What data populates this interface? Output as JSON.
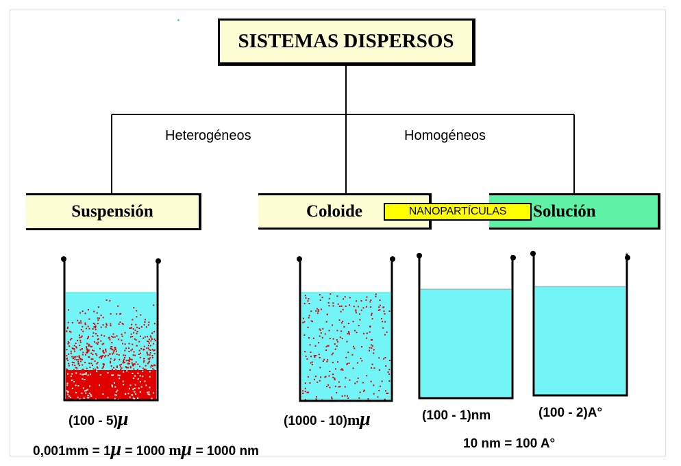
{
  "title": "SISTEMAS DISPERSOS",
  "branches": {
    "heterogeneous": "Heterogéneos",
    "homogeneous": "Homogéneos"
  },
  "systems": {
    "suspension": "Suspensión",
    "coloide": "Coloide",
    "solucion": "Solución"
  },
  "nano_badge": "NANOPARTÍCULAS",
  "sizes": {
    "suspension": {
      "range": "(100 - 5)",
      "unit_symbol": "μ"
    },
    "coloide": {
      "range": "(1000 - 10)",
      "unit_prefix": "m",
      "unit_symbol": "μ"
    },
    "solucion_nm": "(100 - 1)nm",
    "solucion_angstrom": "(100 - 2)A°"
  },
  "conversions": {
    "micro": {
      "part1": "0,001mm = 1",
      "mu": "μ",
      "part2": " = 1000 ",
      "m": "m",
      "mu2": "μ",
      "part3": " = 1000 nm"
    },
    "angstrom": "10 nm = 100 A°"
  },
  "colors": {
    "box_fill": "#fdfdd4",
    "solucion_fill": "#5ff2a5",
    "liquid": "#73f4f6",
    "particles": "#e00000",
    "badge": "#ffff00"
  },
  "icons": [
    "beaker-icon"
  ]
}
